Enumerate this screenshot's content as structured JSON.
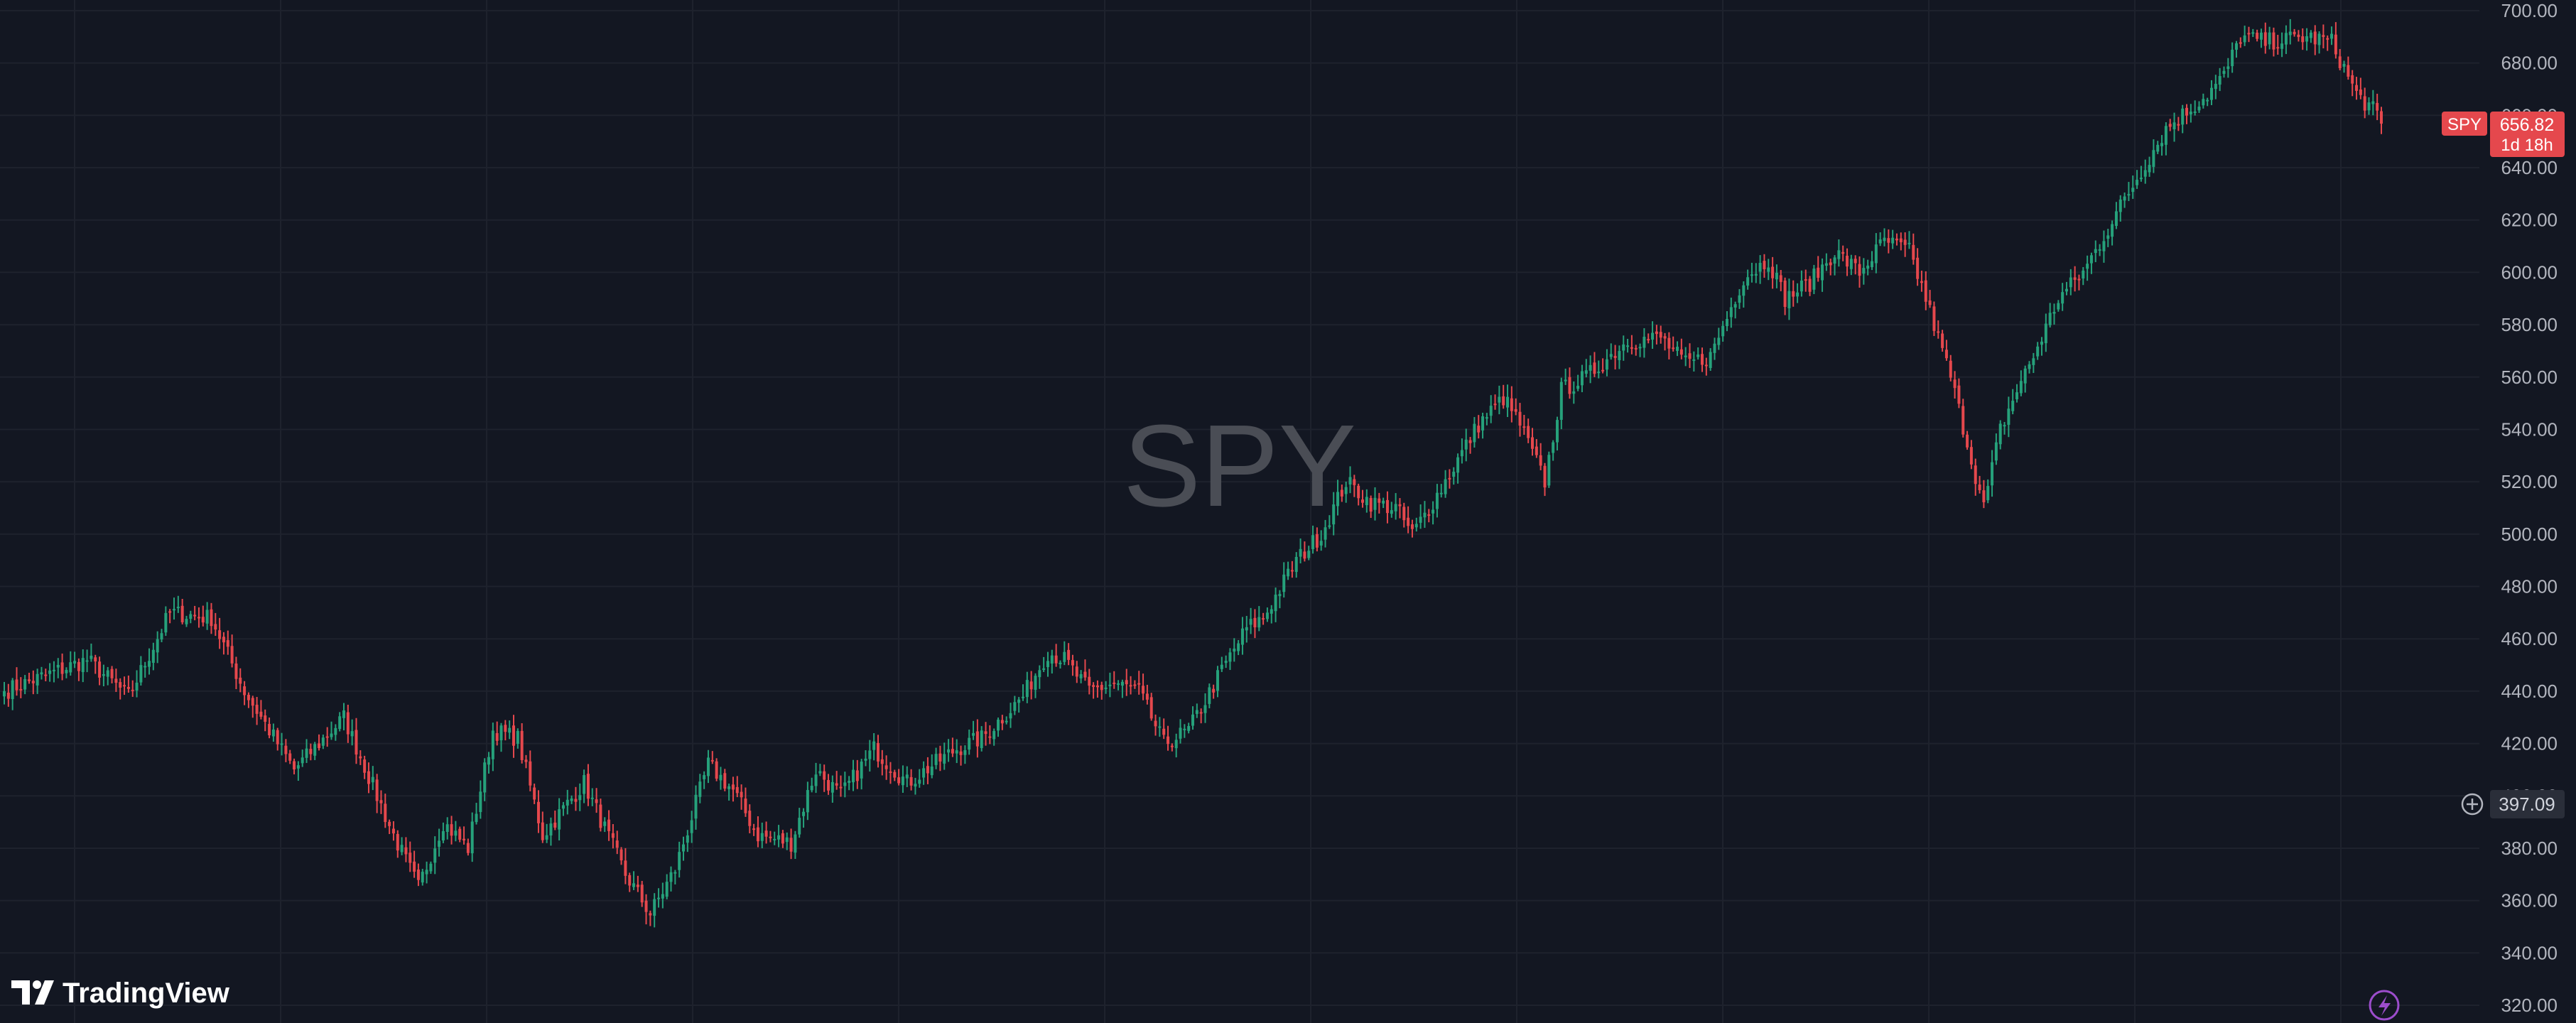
{
  "watermark": {
    "symbol": "SPY"
  },
  "logo": {
    "text": "TradingView",
    "icon": "tradingview-logo-icon"
  },
  "price_label": {
    "symbol": "SPY",
    "price": "656.82",
    "countdown": "1d 18h",
    "color": "#e5484d"
  },
  "crosshair": {
    "price": "397.09",
    "icon": "plus-circle-icon"
  },
  "bottom_icon": {
    "icon": "lightning-bolt-icon",
    "color": "#9c4dcc"
  },
  "colors": {
    "background": "#131722",
    "up": "#26a17b",
    "down": "#e5484d",
    "grid": "#1e222d",
    "axis_text": "#b2b5be",
    "watermark": "#4a4d55"
  },
  "chart_data": {
    "type": "candlestick",
    "symbol": "SPY",
    "y_axis": {
      "position": "right",
      "ylim": [
        320,
        700
      ],
      "tick_labels": [
        "700.00",
        "680.00",
        "660.00",
        "640.00",
        "620.00",
        "600.00",
        "580.00",
        "560.00",
        "540.00",
        "520.00",
        "500.00",
        "480.00",
        "460.00",
        "440.00",
        "420.00",
        "400.00",
        "380.00",
        "360.00",
        "340.00",
        "320.00"
      ]
    },
    "x_axis_labels": [],
    "grid": true,
    "anchor_path": [
      [
        0,
        440
      ],
      [
        20,
        452
      ],
      [
        30,
        438
      ],
      [
        40,
        470
      ],
      [
        50,
        468
      ],
      [
        58,
        440
      ],
      [
        70,
        410
      ],
      [
        82,
        430
      ],
      [
        94,
        385
      ],
      [
        100,
        365
      ],
      [
        106,
        390
      ],
      [
        112,
        380
      ],
      [
        118,
        425
      ],
      [
        124,
        422
      ],
      [
        130,
        385
      ],
      [
        140,
        405
      ],
      [
        150,
        370
      ],
      [
        156,
        355
      ],
      [
        162,
        372
      ],
      [
        170,
        412
      ],
      [
        176,
        402
      ],
      [
        182,
        385
      ],
      [
        190,
        382
      ],
      [
        196,
        410
      ],
      [
        202,
        400
      ],
      [
        210,
        418
      ],
      [
        218,
        405
      ],
      [
        230,
        418
      ],
      [
        236,
        422
      ],
      [
        246,
        438
      ],
      [
        252,
        455
      ],
      [
        256,
        452
      ],
      [
        262,
        440
      ],
      [
        268,
        443
      ],
      [
        274,
        440
      ],
      [
        280,
        420
      ],
      [
        286,
        425
      ],
      [
        294,
        448
      ],
      [
        300,
        464
      ],
      [
        304,
        468
      ],
      [
        312,
        490
      ],
      [
        318,
        500
      ],
      [
        324,
        520
      ],
      [
        330,
        512
      ],
      [
        336,
        510
      ],
      [
        340,
        500
      ],
      [
        346,
        515
      ],
      [
        356,
        542
      ],
      [
        362,
        552
      ],
      [
        366,
        542
      ],
      [
        372,
        520
      ],
      [
        376,
        555
      ],
      [
        382,
        560
      ],
      [
        392,
        574
      ],
      [
        400,
        575
      ],
      [
        406,
        565
      ],
      [
        412,
        568
      ],
      [
        420,
        598
      ],
      [
        426,
        605
      ],
      [
        430,
        590
      ],
      [
        436,
        596
      ],
      [
        442,
        608
      ],
      [
        448,
        600
      ],
      [
        454,
        612
      ],
      [
        460,
        608
      ],
      [
        464,
        590
      ],
      [
        470,
        560
      ],
      [
        474,
        535
      ],
      [
        478,
        510
      ],
      [
        482,
        540
      ],
      [
        486,
        555
      ],
      [
        490,
        568
      ],
      [
        496,
        590
      ],
      [
        502,
        600
      ],
      [
        512,
        628
      ],
      [
        522,
        655
      ],
      [
        532,
        668
      ],
      [
        536,
        675
      ],
      [
        540,
        690
      ],
      [
        546,
        688
      ],
      [
        556,
        690
      ],
      [
        562,
        688
      ],
      [
        568,
        668
      ],
      [
        572,
        662
      ],
      [
        574,
        656.82
      ]
    ]
  }
}
